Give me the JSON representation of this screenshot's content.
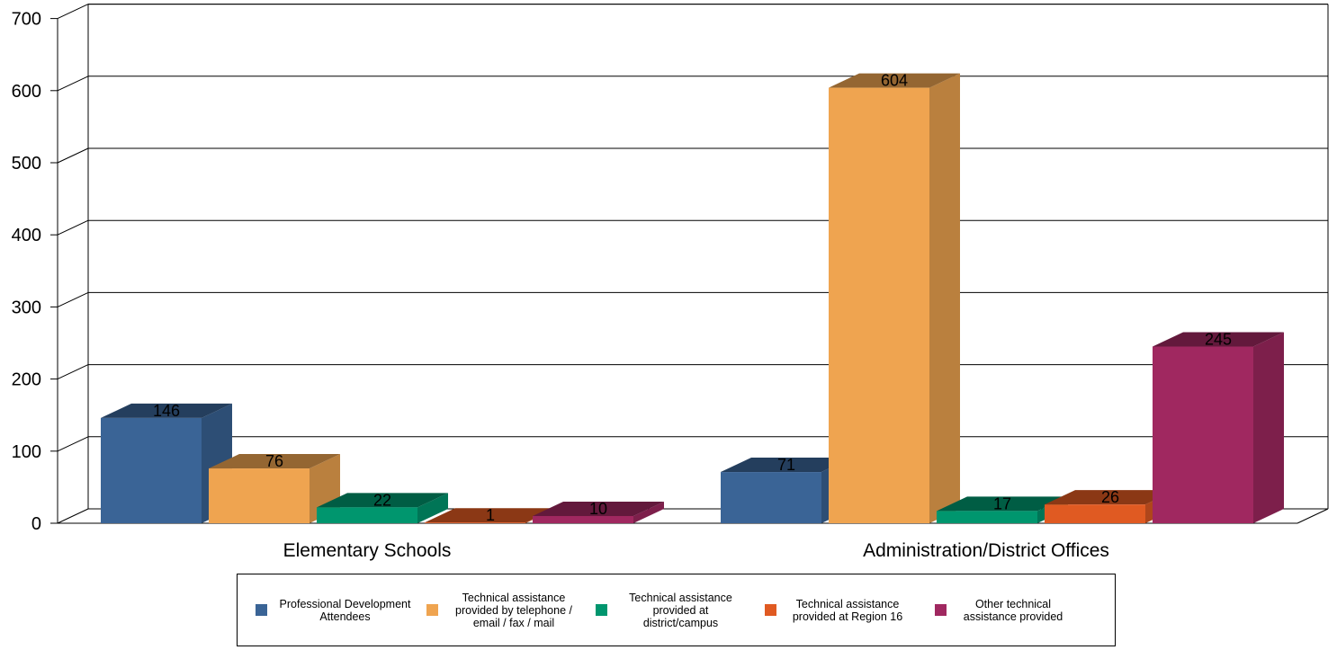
{
  "chart_data": {
    "type": "bar",
    "categories": [
      "Elementary Schools",
      "Administration/District Offices"
    ],
    "series": [
      {
        "name": "Professional Development Attendees",
        "values": [
          146,
          71
        ],
        "color": "#3a6496"
      },
      {
        "name": "Technical assistance provided by telephone / email / fax / mail",
        "values": [
          76,
          604
        ],
        "color": "#efa450"
      },
      {
        "name": "Technical assistance provided at district/campus",
        "values": [
          22,
          17
        ],
        "color": "#00966e"
      },
      {
        "name": "Technical assistance provided at Region 16",
        "values": [
          1,
          26
        ],
        "color": "#e05a22"
      },
      {
        "name": "Other technical assistance provided",
        "values": [
          10,
          245
        ],
        "color": "#a02860"
      }
    ],
    "y_ticks": [
      "0",
      "100",
      "200",
      "300",
      "400",
      "500",
      "600",
      "700"
    ],
    "ylim": [
      0,
      700
    ],
    "grid": true,
    "three_d": true,
    "legend_position": "bottom"
  },
  "legend": {
    "items": [
      {
        "label": "Professional Development Attendees",
        "color": "#3a6496"
      },
      {
        "label": "Technical assistance provided by telephone / email / fax / mail",
        "color": "#efa450"
      },
      {
        "label": "Technical assistance provided at district/campus",
        "color": "#00966e"
      },
      {
        "label": "Technical assistance provided at Region 16",
        "color": "#e05a22"
      },
      {
        "label": "Other technical assistance provided",
        "color": "#a02860"
      }
    ]
  }
}
